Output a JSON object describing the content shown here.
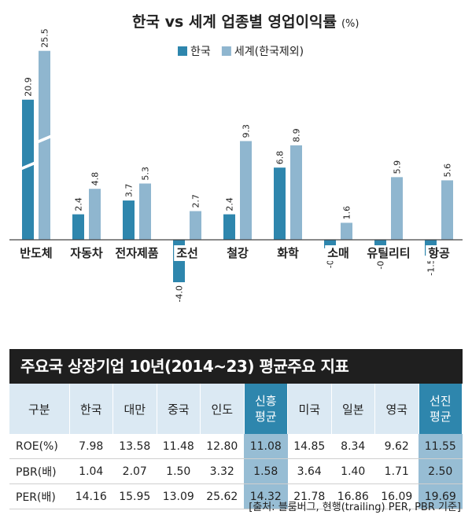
{
  "chart_data": {
    "type": "bar",
    "title": "한국 vs 세계 업종별 영업이익률",
    "title_unit": "(%)",
    "categories": [
      "반도체",
      "자동차",
      "전자제품",
      "조선",
      "철강",
      "화학",
      "소매",
      "유틸리티",
      "항공"
    ],
    "series": [
      {
        "name": "한국",
        "values": [
          20.9,
          2.4,
          3.7,
          -4.0,
          2.4,
          6.8,
          -0.8,
          -0.9,
          -1.5
        ],
        "labels": [
          "20.9",
          "2.4",
          "3.7",
          "-4.0",
          "2.4",
          "6.8",
          "-0.8",
          "-0.9",
          "-1.5"
        ],
        "color": "#2e86ad"
      },
      {
        "name": "세계(한국제외)",
        "values": [
          25.5,
          4.8,
          5.3,
          2.7,
          9.3,
          8.9,
          1.6,
          5.9,
          5.6
        ],
        "labels": [
          "25.5",
          "4.8",
          "5.3",
          "2.7",
          "9.3",
          "8.9",
          "1.6",
          "5.9",
          "5.6"
        ],
        "color": "#8fb6cf"
      }
    ],
    "axis_break_category": "반도체",
    "legend_position": "top-center",
    "grid": false
  },
  "table": {
    "title": "주요국 상장기업 10년(2014~23) 평균주요 지표",
    "header": [
      "구분",
      "한국",
      "대만",
      "중국",
      "인도",
      "신흥\n평균",
      "미국",
      "일본",
      "영국",
      "선진\n평균"
    ],
    "highlight_cols": [
      5,
      9
    ],
    "rows": [
      [
        "ROE(%)",
        "7.98",
        "13.58",
        "11.48",
        "12.80",
        "11.08",
        "14.85",
        "8.34",
        "9.62",
        "11.55"
      ],
      [
        "PBR(배)",
        "1.04",
        "2.07",
        "1.50",
        "3.32",
        "1.58",
        "3.64",
        "1.40",
        "1.71",
        "2.50"
      ],
      [
        "PER(배)",
        "14.16",
        "15.95",
        "13.09",
        "25.62",
        "14.32",
        "21.78",
        "16.86",
        "16.09",
        "19.69"
      ]
    ]
  },
  "source": "[출처: 블룸버그, 현행(trailing) PER, PBR 기준]"
}
